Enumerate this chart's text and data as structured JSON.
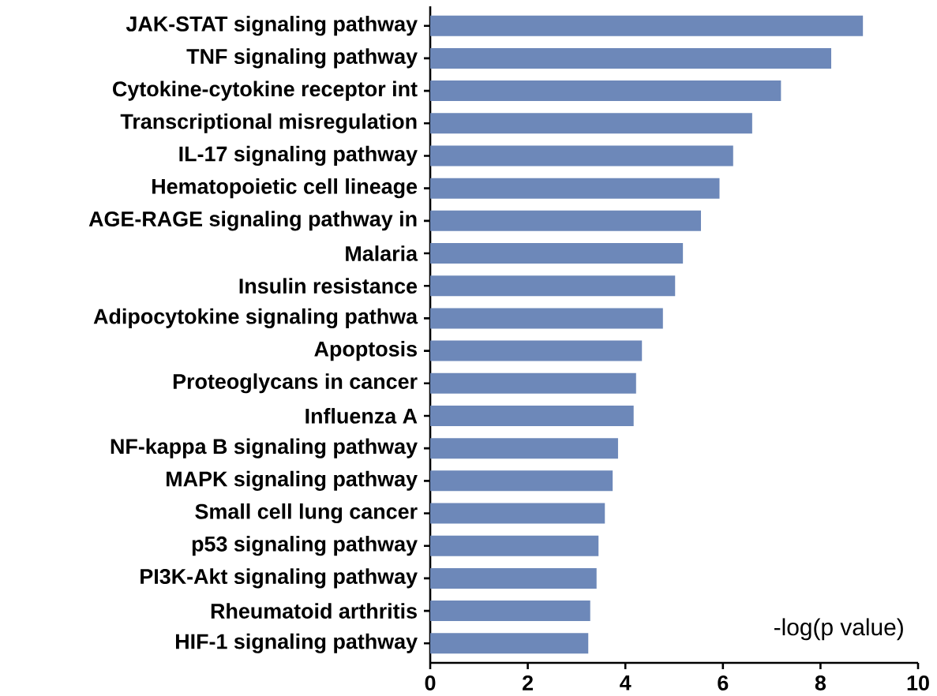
{
  "chart_data": {
    "type": "bar",
    "orientation": "horizontal",
    "xlabel": "-log(p value)",
    "categories": [
      "JAK-STAT signaling pathway",
      "TNF signaling pathway",
      "Cytokine-cytokine receptor int",
      "Transcriptional misregulation",
      "IL-17 signaling pathway",
      "Hematopoietic cell lineage",
      "AGE-RAGE signaling pathway in",
      "Malaria",
      "Insulin resistance",
      "Adipocytokine signaling pathwa",
      "Apoptosis",
      "Proteoglycans in cancer",
      "Influenza A",
      "NF-kappa B signaling pathway",
      "MAPK signaling pathway",
      "Small cell lung cancer",
      "p53 signaling pathway",
      "PI3K-Akt signaling pathway",
      "Rheumatoid arthritis",
      "HIF-1 signaling pathway"
    ],
    "values": [
      8.87,
      8.22,
      7.19,
      6.6,
      6.21,
      5.93,
      5.55,
      5.18,
      5.02,
      4.77,
      4.34,
      4.22,
      4.17,
      3.85,
      3.74,
      3.58,
      3.45,
      3.41,
      3.28,
      3.24
    ],
    "color": "#6d88b9",
    "xlim": [
      0,
      10
    ],
    "xticks": [
      0,
      2,
      4,
      6,
      8,
      10
    ]
  }
}
